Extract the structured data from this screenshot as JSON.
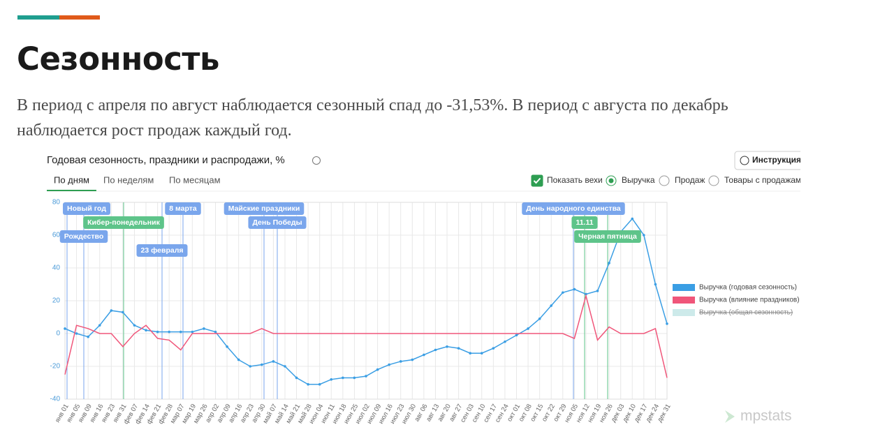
{
  "header": {
    "title": "Сезонность",
    "text": "В период с апреля по август наблюдается сезонный спад до -31,53%. В период с августа по декабрь наблюдается рост продаж каждый год."
  },
  "controls": {
    "help": "Инструкция",
    "tabs": [
      "По дням",
      "По неделям",
      "По месяцам"
    ],
    "active_tab": 0,
    "milestones_toggle": "Показать вехи",
    "milestones_checked": true,
    "metrics": [
      "Выручка",
      "Продаж",
      "Товары с продажами"
    ],
    "active_metric": 0,
    "accent": "#2e9e52"
  },
  "chart_data": {
    "type": "line",
    "title": "Годовая сезонность, праздники и распродажи, %",
    "categories": [
      "янв 01",
      "янв 05",
      "янв 09",
      "янв 16",
      "янв 23",
      "янв 31",
      "фев 07",
      "фев 14",
      "фев 21",
      "фев 28",
      "мар 07",
      "мар 19",
      "мар 26",
      "апр 02",
      "апр 09",
      "апр 16",
      "апр 23",
      "апр 30",
      "май 07",
      "май 14",
      "май 21",
      "май 28",
      "июн 04",
      "июн 11",
      "июн 18",
      "июн 25",
      "июл 02",
      "июл 09",
      "июл 16",
      "июл 23",
      "июл 30",
      "авг 06",
      "авг 13",
      "авг 20",
      "авг 27",
      "сен 03",
      "сен 10",
      "сен 17",
      "сен 24",
      "окт 01",
      "окт 08",
      "окт 15",
      "окт 22",
      "окт 29",
      "ноя 05",
      "ноя 12",
      "ноя 19",
      "ноя 26",
      "дек 03",
      "дек 10",
      "дек 17",
      "дек 24",
      "дек 31"
    ],
    "series": [
      {
        "name": "Выручка (годовая сезонность)",
        "color": "#3a9ee4",
        "markers": true,
        "values": [
          3,
          0,
          -2,
          5,
          14,
          13,
          5,
          2,
          1,
          1,
          1,
          1,
          3,
          1,
          -8,
          -16,
          -20,
          -19,
          -17,
          -20,
          -27,
          -31,
          -31,
          -28,
          -27,
          -27,
          -26,
          -22,
          -19,
          -17,
          -16,
          -13,
          -10,
          -8,
          -9,
          -12,
          -12,
          -9,
          -5,
          -1,
          3,
          9,
          17,
          25,
          27,
          24,
          26,
          43,
          62,
          70,
          60,
          30,
          6
        ]
      },
      {
        "name": "Выручка (влияние праздников)",
        "color": "#f0567a",
        "markers": false,
        "values": [
          -25,
          5,
          3,
          0,
          0,
          -8,
          0,
          5,
          -3,
          -4,
          -10,
          0,
          0,
          0,
          0,
          0,
          0,
          3,
          0,
          0,
          0,
          0,
          0,
          0,
          0,
          0,
          0,
          0,
          0,
          0,
          0,
          0,
          0,
          0,
          0,
          0,
          0,
          0,
          0,
          0,
          0,
          0,
          0,
          0,
          -3,
          23,
          -4,
          4,
          0,
          0,
          0,
          3,
          -27
        ]
      },
      {
        "name": "Выручка (общая сезонность)",
        "color": "#cdeaea",
        "hidden": true
      }
    ],
    "ylim": [
      -40,
      80
    ],
    "yticks": [
      -40,
      -20,
      0,
      20,
      40,
      60,
      80
    ],
    "grid": true,
    "legend": "right",
    "milestones": [
      {
        "label": "Новый год",
        "color": "#7aa6ec"
      },
      {
        "label": "Рождество",
        "color": "#7aa6ec"
      },
      {
        "label": "Кибер-понедельник",
        "color": "#5ec48a"
      },
      {
        "label": "23 февраля",
        "color": "#7aa6ec"
      },
      {
        "label": "8 марта",
        "color": "#7aa6ec"
      },
      {
        "label": "Майские праздники",
        "color": "#7aa6ec"
      },
      {
        "label": "День Победы",
        "color": "#7aa6ec"
      },
      {
        "label": "День народного единства",
        "color": "#7aa6ec"
      },
      {
        "label": "11.11",
        "color": "#5ec48a"
      },
      {
        "label": "Черная пятница",
        "color": "#5ec48a"
      }
    ]
  },
  "logo": "mpstats"
}
